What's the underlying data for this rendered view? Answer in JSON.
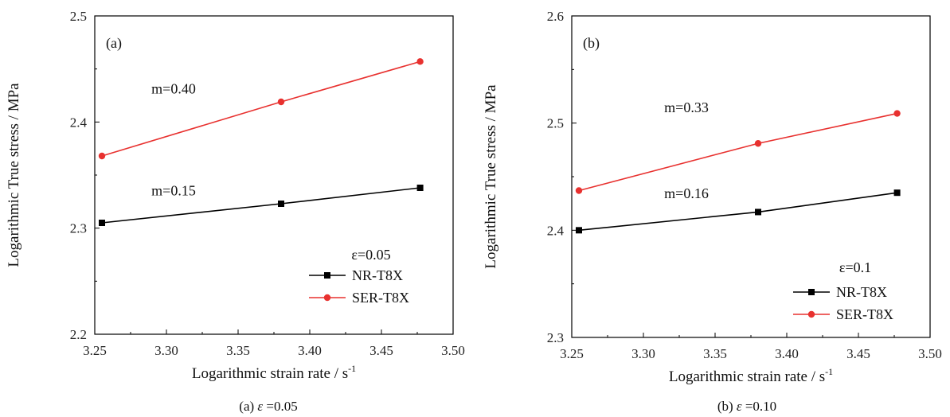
{
  "chart_data": [
    {
      "type": "line",
      "panel_label": "(a)",
      "caption_prefix": "(a) ",
      "caption_symbol": "ε",
      "caption_value": " =0.05",
      "xlabel": "Logarithmic strain rate / s",
      "xlabel_sup": "-1",
      "ylabel": "Logarithmic True stress / MPa",
      "xlim": [
        3.25,
        3.5
      ],
      "ylim": [
        2.2,
        2.5
      ],
      "xticks": [
        "3.25",
        "3.30",
        "3.35",
        "3.40",
        "3.45",
        "3.50"
      ],
      "yticks": [
        "2.2",
        "2.3",
        "2.4",
        "2.5"
      ],
      "legend_title": "ε=0.05",
      "series": [
        {
          "name": "NR-T8X",
          "color": "#000000",
          "marker": "square",
          "x": [
            3.255,
            3.38,
            3.477
          ],
          "y": [
            2.305,
            2.323,
            2.338
          ]
        },
        {
          "name": "SER-T8X",
          "color": "#e8312f",
          "marker": "circle",
          "x": [
            3.255,
            3.38,
            3.477
          ],
          "y": [
            2.368,
            2.419,
            2.457
          ]
        }
      ],
      "annotations": [
        {
          "text": "m=0.40",
          "x": 3.305,
          "y": 2.427
        },
        {
          "text": "m=0.15",
          "x": 3.305,
          "y": 2.331
        }
      ]
    },
    {
      "type": "line",
      "panel_label": "(b)",
      "caption_prefix": "(b) ",
      "caption_symbol": "ε",
      "caption_value": " =0.10",
      "xlabel": "Logarithmic strain rate / s",
      "xlabel_sup": "-1",
      "ylabel": "Logarithmic True stress / MPa",
      "xlim": [
        3.25,
        3.5
      ],
      "ylim": [
        2.3,
        2.6
      ],
      "xticks": [
        "3.25",
        "3.30",
        "3.35",
        "3.40",
        "3.45",
        "3.50"
      ],
      "yticks": [
        "2.3",
        "2.4",
        "2.5",
        "2.6"
      ],
      "legend_title": "ε=0.1",
      "series": [
        {
          "name": "NR-T8X",
          "color": "#000000",
          "marker": "square",
          "x": [
            3.255,
            3.38,
            3.477
          ],
          "y": [
            2.4,
            2.417,
            2.435
          ]
        },
        {
          "name": "SER-T8X",
          "color": "#e8312f",
          "marker": "circle",
          "x": [
            3.255,
            3.38,
            3.477
          ],
          "y": [
            2.437,
            2.481,
            2.509
          ]
        }
      ],
      "annotations": [
        {
          "text": "m=0.33",
          "x": 3.33,
          "y": 2.51
        },
        {
          "text": "m=0.16",
          "x": 3.33,
          "y": 2.43
        }
      ]
    }
  ]
}
